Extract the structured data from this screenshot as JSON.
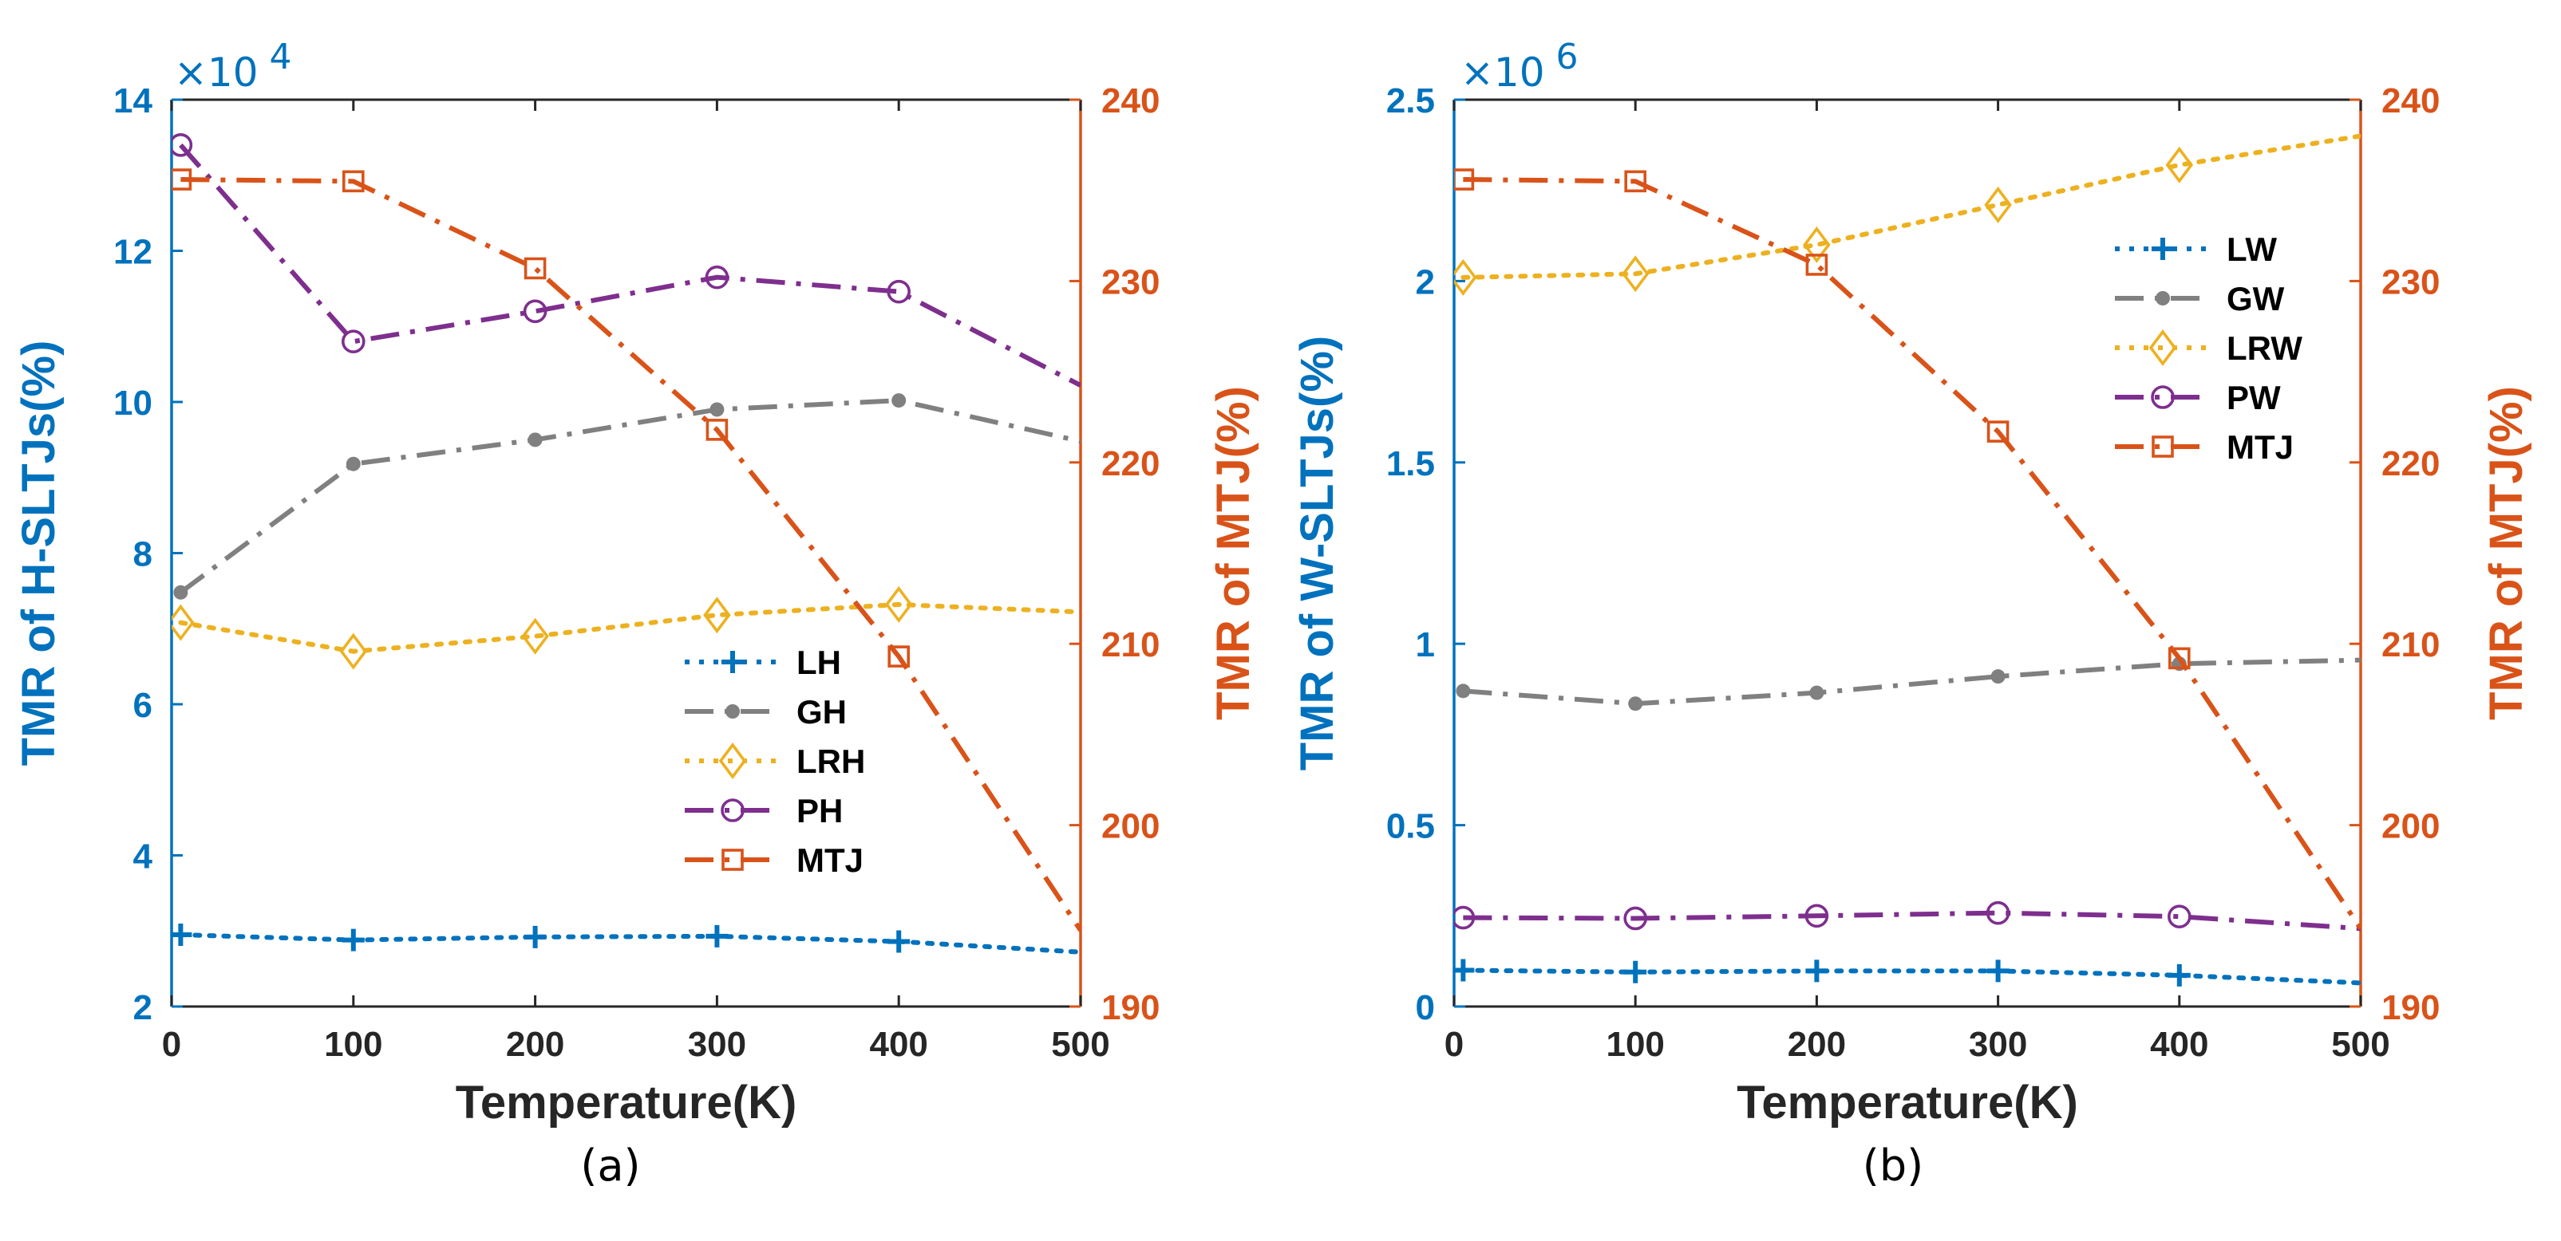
{
  "colors": {
    "blue": "#0072BD",
    "orange": "#D95319",
    "yellow": "#EDB120",
    "purple": "#7E2F8E",
    "gray": "#808080",
    "axis": "#262626"
  },
  "chart_data": [
    {
      "type": "line",
      "panel": "a",
      "caption": "(a)",
      "xlabel": "Temperature(K)",
      "ylabel_left": "TMR of H-SLTJs(%)",
      "ylabel_right": "TMR of MTJ(%)",
      "xlim": [
        0,
        500
      ],
      "xticks": [
        0,
        100,
        200,
        300,
        400,
        500
      ],
      "ylim_left": [
        20000,
        140000
      ],
      "yticks_left": [
        20000,
        40000,
        60000,
        80000,
        100000,
        120000,
        140000
      ],
      "ytick_labels_left": [
        "2",
        "4",
        "6",
        "8",
        "10",
        "12",
        "14"
      ],
      "exponent_label": "×10",
      "exponent_power": "4",
      "ylim_right": [
        190,
        240
      ],
      "yticks_right": [
        190,
        200,
        210,
        220,
        230,
        240
      ],
      "ytick_labels_right": [
        "190",
        "200",
        "210",
        "220",
        "230",
        "240"
      ],
      "legend_position": "center-right",
      "x": [
        5,
        100,
        200,
        300,
        400,
        500
      ],
      "series": [
        {
          "name": "LH",
          "axis": "left",
          "color": "blue",
          "linestyle": "dotted",
          "marker": "plus",
          "values": [
            29500,
            28800,
            29200,
            29300,
            28600,
            27200
          ]
        },
        {
          "name": "GH",
          "axis": "left",
          "color": "gray",
          "linestyle": "dashdot",
          "marker": "dot",
          "values": [
            74800,
            91800,
            95000,
            99000,
            100200,
            94800
          ]
        },
        {
          "name": "LRH",
          "axis": "left",
          "color": "yellow",
          "linestyle": "dotted",
          "marker": "diamond",
          "values": [
            70800,
            67000,
            69000,
            71800,
            73200,
            72200
          ]
        },
        {
          "name": "PH",
          "axis": "left",
          "color": "purple",
          "linestyle": "dashdot",
          "marker": "circle",
          "values": [
            134000,
            108000,
            112000,
            116500,
            114600,
            102200
          ]
        },
        {
          "name": "MTJ",
          "axis": "right",
          "color": "orange",
          "linestyle": "dashdot",
          "marker": "square",
          "values": [
            235.6,
            235.5,
            230.7,
            221.8,
            209.3,
            194.2
          ]
        }
      ]
    },
    {
      "type": "line",
      "panel": "b",
      "caption": "(b)",
      "xlabel": "Temperature(K)",
      "ylabel_left": "TMR of W-SLTJs(%)",
      "ylabel_right": "TMR of MTJ(%)",
      "xlim": [
        0,
        500
      ],
      "xticks": [
        0,
        100,
        200,
        300,
        400,
        500
      ],
      "ylim_left": [
        0,
        2500000
      ],
      "yticks_left": [
        0,
        500000,
        1000000,
        1500000,
        2000000,
        2500000
      ],
      "ytick_labels_left": [
        "0",
        "0.5",
        "1",
        "1.5",
        "2",
        "2.5"
      ],
      "exponent_label": "×10",
      "exponent_power": "6",
      "ylim_right": [
        190,
        240
      ],
      "yticks_right": [
        190,
        200,
        210,
        220,
        230,
        240
      ],
      "ytick_labels_right": [
        "190",
        "200",
        "210",
        "220",
        "230",
        "240"
      ],
      "legend_position": "top-right",
      "x": [
        5,
        100,
        200,
        300,
        400,
        500
      ],
      "series": [
        {
          "name": "LW",
          "axis": "left",
          "color": "blue",
          "linestyle": "dotted",
          "marker": "plus",
          "values": [
            100000,
            95000,
            98000,
            98000,
            86000,
            65000
          ]
        },
        {
          "name": "GW",
          "axis": "left",
          "color": "gray",
          "linestyle": "dashdot",
          "marker": "dot",
          "values": [
            870000,
            835000,
            865000,
            910000,
            945000,
            955000
          ]
        },
        {
          "name": "LRW",
          "axis": "left",
          "color": "yellow",
          "linestyle": "dotted",
          "marker": "diamond",
          "values": [
            2010000,
            2020000,
            2100000,
            2210000,
            2320000,
            2400000
          ]
        },
        {
          "name": "PW",
          "axis": "left",
          "color": "purple",
          "linestyle": "dashdot",
          "marker": "circle",
          "values": [
            245000,
            243000,
            250000,
            258000,
            248000,
            215000
          ]
        },
        {
          "name": "MTJ",
          "axis": "right",
          "color": "orange",
          "linestyle": "dashdot",
          "marker": "square",
          "values": [
            235.6,
            235.5,
            230.9,
            221.7,
            209.2,
            194.3
          ]
        }
      ]
    }
  ]
}
